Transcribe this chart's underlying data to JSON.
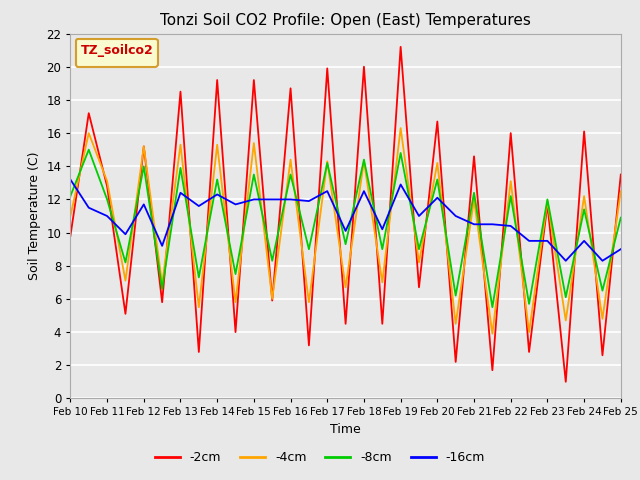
{
  "title": "Tonzi Soil CO2 Profile: Open (East) Temperatures",
  "xlabel": "Time",
  "ylabel": "Soil Temperature (C)",
  "ylim": [
    0,
    22
  ],
  "xlim": [
    0,
    15
  ],
  "plot_bg": "#e8e8e8",
  "grid_color": "#ffffff",
  "x_tick_labels": [
    "Feb 10",
    "Feb 11",
    "Feb 12",
    "Feb 13",
    "Feb 14",
    "Feb 15",
    "Feb 16",
    "Feb 17",
    "Feb 18",
    "Feb 19",
    "Feb 20",
    "Feb 21",
    "Feb 22",
    "Feb 23",
    "Feb 24",
    "Feb 25"
  ],
  "legend_label": "TZ_soilco2",
  "series_order": [
    "-2cm",
    "-4cm",
    "-8cm",
    "-16cm"
  ],
  "series": {
    "-2cm": {
      "color": "#ff0000",
      "x": [
        0.0,
        0.5,
        1.0,
        1.5,
        2.0,
        2.5,
        3.0,
        3.5,
        4.0,
        4.5,
        5.0,
        5.5,
        6.0,
        6.5,
        7.0,
        7.5,
        8.0,
        8.5,
        9.0,
        9.5,
        10.0,
        10.5,
        11.0,
        11.5,
        12.0,
        12.5,
        13.0,
        13.5,
        14.0,
        14.5,
        15.0
      ],
      "y": [
        9.8,
        17.2,
        12.8,
        5.1,
        15.2,
        5.8,
        18.5,
        2.8,
        19.2,
        4.0,
        19.2,
        5.9,
        18.7,
        3.2,
        19.9,
        4.5,
        20.0,
        4.5,
        21.2,
        6.7,
        16.7,
        2.2,
        14.6,
        1.7,
        16.0,
        2.8,
        11.7,
        1.0,
        16.1,
        2.6,
        13.5
      ]
    },
    "-4cm": {
      "color": "#ffa500",
      "x": [
        0.0,
        0.5,
        1.0,
        1.5,
        2.0,
        2.5,
        3.0,
        3.5,
        4.0,
        4.5,
        5.0,
        5.5,
        6.0,
        6.5,
        7.0,
        7.5,
        8.0,
        8.5,
        9.0,
        9.5,
        10.0,
        10.5,
        11.0,
        11.5,
        12.0,
        12.5,
        13.0,
        13.5,
        14.0,
        14.5,
        15.0
      ],
      "y": [
        11.0,
        16.0,
        13.1,
        7.1,
        15.2,
        6.9,
        15.3,
        5.5,
        15.3,
        5.8,
        15.4,
        6.0,
        14.4,
        5.8,
        14.3,
        6.7,
        14.3,
        7.0,
        16.3,
        8.2,
        14.2,
        4.5,
        12.0,
        3.9,
        13.1,
        4.0,
        11.9,
        4.7,
        12.2,
        4.8,
        12.5
      ]
    },
    "-8cm": {
      "color": "#00cc00",
      "x": [
        0.0,
        0.5,
        1.0,
        1.5,
        2.0,
        2.5,
        3.0,
        3.5,
        4.0,
        4.5,
        5.0,
        5.5,
        6.0,
        6.5,
        7.0,
        7.5,
        8.0,
        8.5,
        9.0,
        9.5,
        10.0,
        10.5,
        11.0,
        11.5,
        12.0,
        12.5,
        13.0,
        13.5,
        14.0,
        14.5,
        15.0
      ],
      "y": [
        12.2,
        15.0,
        12.0,
        8.2,
        14.0,
        6.6,
        13.9,
        7.3,
        13.2,
        7.5,
        13.5,
        8.3,
        13.5,
        9.0,
        14.2,
        9.3,
        14.4,
        9.0,
        14.8,
        9.0,
        13.2,
        6.2,
        12.4,
        5.5,
        12.2,
        5.7,
        12.0,
        6.1,
        11.4,
        6.5,
        10.9
      ]
    },
    "-16cm": {
      "color": "#0000ff",
      "x": [
        0.0,
        0.5,
        1.0,
        1.5,
        2.0,
        2.5,
        3.0,
        3.5,
        4.0,
        4.5,
        5.0,
        5.5,
        6.0,
        6.5,
        7.0,
        7.5,
        8.0,
        8.5,
        9.0,
        9.5,
        10.0,
        10.5,
        11.0,
        11.5,
        12.0,
        12.5,
        13.0,
        13.5,
        14.0,
        14.5,
        15.0
      ],
      "y": [
        13.2,
        11.5,
        11.0,
        9.9,
        11.7,
        9.2,
        12.4,
        11.6,
        12.3,
        11.7,
        12.0,
        12.0,
        12.0,
        11.9,
        12.5,
        10.1,
        12.5,
        10.2,
        12.9,
        11.0,
        12.1,
        11.0,
        10.5,
        10.5,
        10.4,
        9.5,
        9.5,
        8.3,
        9.5,
        8.3,
        9.0
      ]
    }
  }
}
